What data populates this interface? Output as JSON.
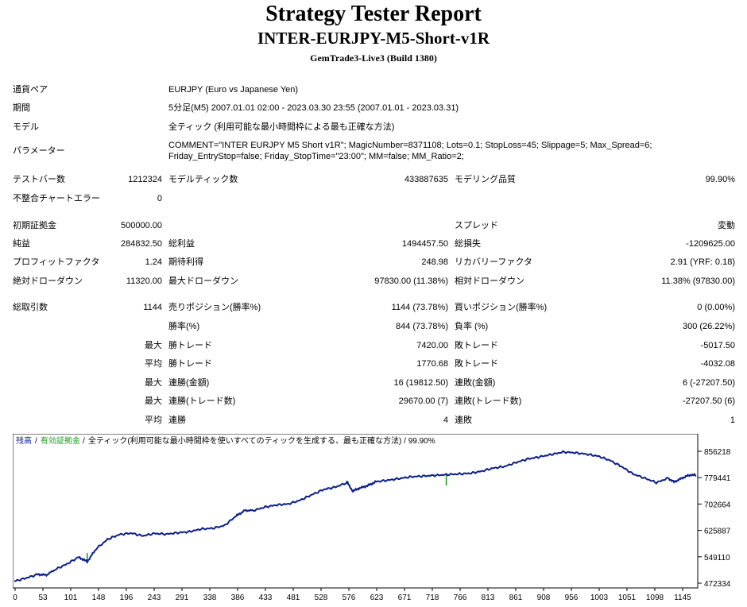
{
  "title": "Strategy Tester Report",
  "subtitle": "INTER-EURJPY-M5-Short-v1R",
  "server": "GemTrade3-Live3 (Build 1380)",
  "info": {
    "pair_label": "通貨ペア",
    "pair_value": "EURJPY (Euro vs Japanese Yen)",
    "period_label": "期間",
    "period_value": "5分足(M5) 2007.01.01 02:00 - 2023.03.30 23:55 (2007.01.01 - 2023.03.31)",
    "model_label": "モデル",
    "model_value": "全ティック (利用可能な最小時間枠による最も正確な方法)",
    "params_label": "パラメーター",
    "params_line1": "COMMENT=\"INTER EURJPY M5 Short v1R\"; MagicNumber=8371108; Lots=0.1; StopLoss=45; Slippage=5; Max_Spread=6;",
    "params_line2": "Friday_EntryStop=false; Friday_StopTime=\"23:00\"; MM=false; MM_Ratio=2;"
  },
  "stats": {
    "bars_label": "テストバー数",
    "bars_value": "1212324",
    "ticks_label": "モデルティック数",
    "ticks_value": "433887635",
    "quality_label": "モデリング品質",
    "quality_value": "99.90%",
    "mismatch_label": "不整合チャートエラー",
    "mismatch_value": "0",
    "deposit_label": "初期証拠金",
    "deposit_value": "500000.00",
    "spread_label": "スプレッド",
    "spread_value": "変動",
    "net_label": "純益",
    "net_value": "284832.50",
    "gross_profit_label": "総利益",
    "gross_profit_value": "1494457.50",
    "gross_loss_label": "総損失",
    "gross_loss_value": "-1209625.00",
    "pf_label": "プロフィットファクタ",
    "pf_value": "1.24",
    "expected_label": "期待利得",
    "expected_value": "248.98",
    "recovery_label": "リカバリーファクタ",
    "recovery_value": "2.91 (YRF: 0.18)",
    "abs_dd_label": "絶対ドローダウン",
    "abs_dd_value": "11320.00",
    "max_dd_label": "最大ドローダウン",
    "max_dd_value": "97830.00 (11.38%)",
    "rel_dd_label": "相対ドローダウン",
    "rel_dd_value": "11.38% (97830.00)",
    "trades_label": "総取引数",
    "trades_value": "1144",
    "short_label": "売りポジション(勝率%)",
    "short_value": "1144 (73.78%)",
    "long_label": "買いポジション(勝率%)",
    "long_value": "0 (0.00%)",
    "winrate_label": "勝率(%)",
    "winrate_value": "844 (73.78%)",
    "lossrate_label": "負率 (%)",
    "lossrate_value": "300 (26.22%)",
    "max_word": "最大",
    "avg_word": "平均",
    "largest_win_label": "勝トレード",
    "largest_win_value": "7420.00",
    "largest_loss_label": "敗トレード",
    "largest_loss_value": "-5017.50",
    "avg_win_label": "勝トレード",
    "avg_win_value": "1770.68",
    "avg_loss_label": "敗トレード",
    "avg_loss_value": "-4032.08",
    "max_cons_wins_label": "連勝(金額)",
    "max_cons_wins_value": "16 (19812.50)",
    "max_cons_losses_label": "連敗(金額)",
    "max_cons_losses_value": "6 (-27207.50)",
    "max_cons_profit_label": "連勝(トレード数)",
    "max_cons_profit_value": "29670.00 (7)",
    "max_cons_loss_label": "連敗(トレード数)",
    "max_cons_loss_value": "-27207.50 (6)",
    "avg_cons_wins_label": "連勝",
    "avg_cons_wins_value": "4",
    "avg_cons_losses_label": "連敗",
    "avg_cons_losses_value": "1"
  },
  "chart_data": {
    "type": "line",
    "legend": {
      "balance": "残高",
      "margin": "有効証拠金",
      "text": "全ティック(利用可能な最小時間枠を使いすべてのティックを生成する、最も正確な方法) / 99.90%",
      "sep": "/"
    },
    "x_ticks": [
      "0",
      "53",
      "101",
      "148",
      "196",
      "243",
      "291",
      "338",
      "386",
      "433",
      "481",
      "528",
      "576",
      "623",
      "671",
      "718",
      "766",
      "813",
      "861",
      "908",
      "956",
      "1003",
      "1051",
      "1098",
      "1145"
    ],
    "y_ticks": [
      "856218",
      "779441",
      "702664",
      "625887",
      "549110",
      "472334"
    ],
    "ylim": [
      472334,
      856218
    ],
    "xlim": [
      0,
      1168
    ],
    "series": [
      {
        "name": "残高",
        "color": "#0b1f8a",
        "x": [
          0,
          20,
          40,
          55,
          70,
          90,
          110,
          125,
          140,
          160,
          180,
          200,
          220,
          240,
          260,
          280,
          300,
          320,
          340,
          360,
          380,
          395,
          410,
          430,
          450,
          470,
          490,
          510,
          530,
          550,
          570,
          580,
          590,
          605,
          620,
          640,
          660,
          680,
          700,
          720,
          740,
          760,
          780,
          800,
          820,
          840,
          860,
          880,
          900,
          920,
          940,
          960,
          980,
          1000,
          1020,
          1040,
          1060,
          1080,
          1100,
          1120,
          1130,
          1140,
          1150,
          1160,
          1168
        ],
        "values": [
          478000,
          487000,
          498000,
          496000,
          512000,
          528000,
          548000,
          535000,
          572000,
          600000,
          614000,
          618000,
          610000,
          617000,
          615000,
          619000,
          622000,
          630000,
          632000,
          640000,
          668000,
          684000,
          684000,
          694000,
          700000,
          703000,
          714000,
          730000,
          745000,
          752000,
          765000,
          740000,
          748000,
          756000,
          768000,
          772000,
          777000,
          782000,
          784000,
          786000,
          788000,
          790000,
          792000,
          798000,
          807000,
          812000,
          824000,
          834000,
          840000,
          847000,
          854000,
          852000,
          848000,
          842000,
          830000,
          812000,
          790000,
          778000,
          765000,
          778000,
          767000,
          775000,
          783000,
          788000,
          786000
        ]
      }
    ],
    "spikes": [
      {
        "x": 125,
        "value": 560000
      },
      {
        "x": 572,
        "value": 768000
      },
      {
        "x": 740,
        "value": 756000
      }
    ]
  }
}
